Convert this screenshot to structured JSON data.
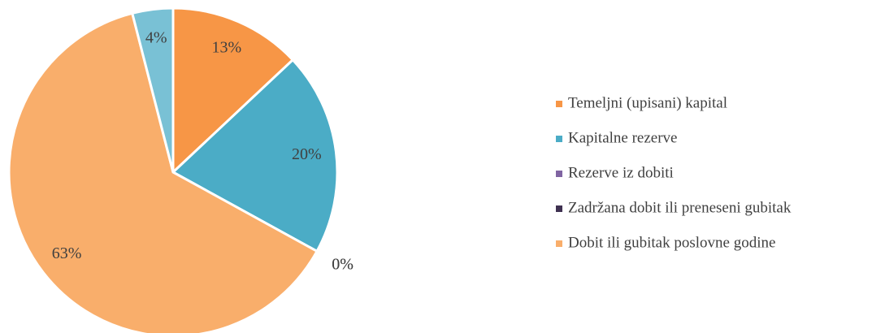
{
  "chart_data": {
    "type": "pie",
    "categories": [
      "Temeljni (upisani) kapital",
      "Kapitalne rezerve",
      "Rezerve iz dobiti",
      "Zadržana dobit ili preneseni gubitak",
      "Dobit ili gubitak poslovne godine",
      null
    ],
    "values": [
      13,
      20,
      0,
      0,
      63,
      4
    ],
    "value_labels": [
      "13%",
      "20%",
      "0%",
      "0%",
      "63%",
      "4%"
    ],
    "colors": [
      "#f79646",
      "#4bacc6",
      "#8064a2",
      "#3f3151",
      "#f9ae6b",
      "#79c1d5"
    ],
    "legend": "right"
  }
}
